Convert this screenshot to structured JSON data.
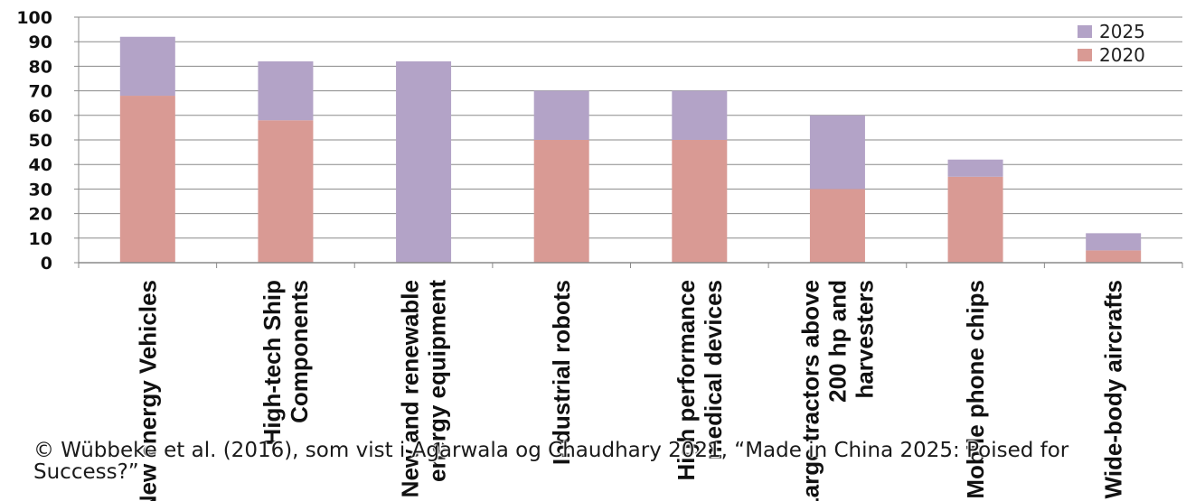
{
  "chart_data": {
    "type": "bar",
    "stacked": true,
    "categories": [
      [
        "New energy Vehicles"
      ],
      [
        "High-tech Ship",
        "Components"
      ],
      [
        "New and renewable",
        "energy equipment"
      ],
      [
        "Industrial robots"
      ],
      [
        "High performance",
        "medical devices"
      ],
      [
        "Large tractors above",
        "200 hp and",
        "harvesters"
      ],
      [
        "Mobile phone chips"
      ],
      [
        "Wide-body aircrafts"
      ]
    ],
    "series": [
      {
        "name": "2020",
        "color": "#d99a94",
        "values": [
          68,
          58,
          0,
          50,
          50,
          30,
          35,
          5
        ]
      },
      {
        "name": "2025",
        "color": "#b3a3c7",
        "values": [
          24,
          24,
          82,
          20,
          20,
          30,
          7,
          7
        ]
      }
    ],
    "ylim": [
      0,
      100
    ],
    "yticks": [
      0,
      10,
      20,
      30,
      40,
      50,
      60,
      70,
      80,
      90,
      100
    ],
    "grid": true,
    "legend": "top-right",
    "legend_order": [
      "2025",
      "2020"
    ]
  },
  "caption": "© Wübbeke et al. (2016), som vist i Agarwala og Chaudhary 2021, “Made in China 2025: Poised for Success?”"
}
